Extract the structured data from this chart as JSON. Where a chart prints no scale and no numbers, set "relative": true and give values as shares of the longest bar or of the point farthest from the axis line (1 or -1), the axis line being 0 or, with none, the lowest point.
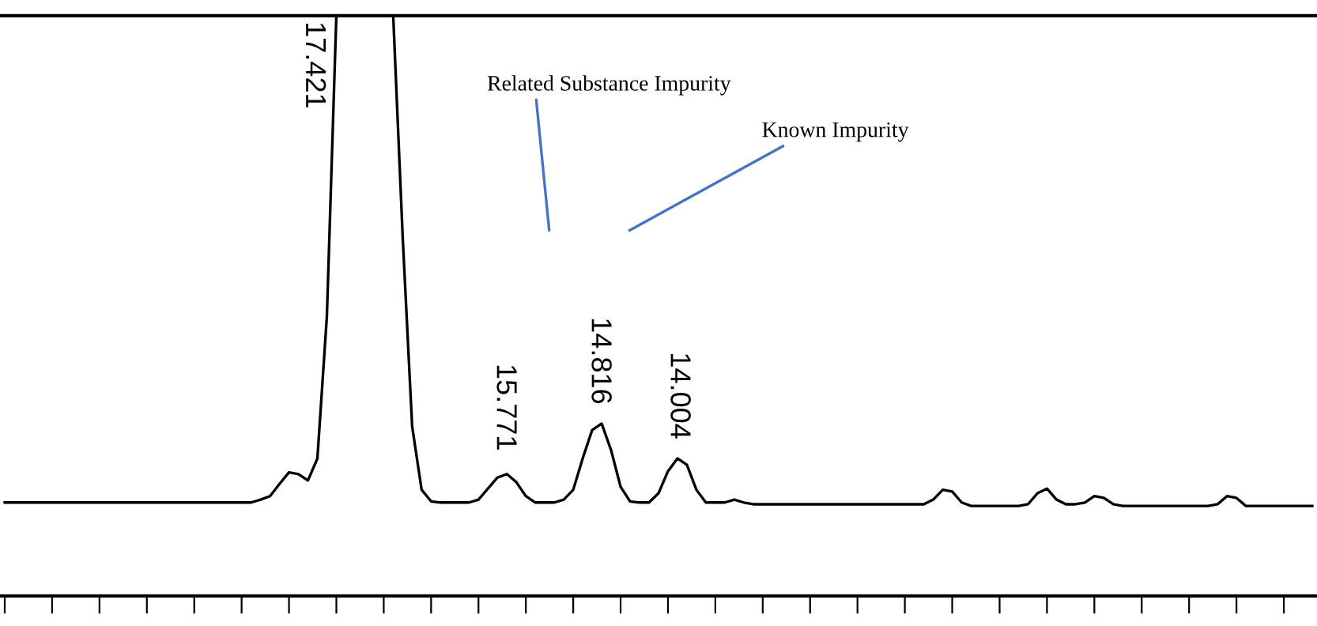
{
  "chart_data": {
    "type": "line",
    "relative": true,
    "tick_labels": false,
    "grid": false,
    "marker": "none",
    "line_style": "solid",
    "categories": [
      null,
      null,
      null,
      null,
      null,
      null,
      null,
      null,
      null,
      null,
      null,
      null,
      null,
      null,
      null,
      null,
      null,
      null,
      null,
      null,
      null,
      null,
      null,
      null,
      null,
      null,
      null,
      null,
      null,
      null,
      null,
      null,
      null,
      null,
      null,
      null,
      null,
      null,
      null,
      null,
      null,
      null,
      null,
      null,
      null,
      null,
      null,
      null,
      null,
      null,
      null,
      null,
      null,
      null,
      null,
      null,
      null,
      null,
      null,
      null,
      null,
      null,
      null,
      null,
      null,
      null,
      null,
      null,
      null,
      null,
      null,
      null,
      null,
      null,
      null,
      null,
      null,
      null,
      null,
      null,
      null,
      null,
      null,
      null,
      null,
      null,
      null,
      null,
      null,
      null,
      null,
      null,
      null,
      null,
      null,
      null,
      null,
      null,
      null,
      null,
      null,
      null,
      null,
      null,
      null,
      null,
      null,
      null,
      null,
      null,
      null,
      null,
      null,
      null,
      null,
      null,
      null,
      null,
      null,
      null,
      null,
      null,
      null,
      null,
      null,
      null,
      null,
      null,
      null,
      null,
      null,
      null,
      null,
      null,
      null,
      null,
      null,
      null,
      null
    ],
    "series": [
      {
        "color": "#000000",
        "values": [
          0.161,
          0.161,
          0.161,
          0.161,
          0.161,
          0.161,
          0.161,
          0.161,
          0.161,
          0.161,
          0.161,
          0.161,
          0.161,
          0.161,
          0.161,
          0.161,
          0.161,
          0.161,
          0.161,
          0.161,
          0.161,
          0.161,
          0.161,
          0.161,
          0.161,
          0.161,
          0.161,
          0.166,
          0.172,
          0.193,
          0.213,
          0.21,
          0.199,
          0.237,
          0.482,
          1.0,
          1.0,
          1.0,
          1.0,
          1.0,
          1.0,
          1.0,
          0.619,
          0.292,
          0.183,
          0.163,
          0.161,
          0.161,
          0.161,
          0.161,
          0.166,
          0.185,
          0.204,
          0.21,
          0.196,
          0.172,
          0.161,
          0.161,
          0.161,
          0.166,
          0.183,
          0.237,
          0.286,
          0.297,
          0.251,
          0.188,
          0.163,
          0.161,
          0.161,
          0.177,
          0.215,
          0.237,
          0.226,
          0.183,
          0.161,
          0.161,
          0.161,
          0.166,
          0.161,
          0.158,
          0.158,
          0.158,
          0.158,
          0.158,
          0.158,
          0.158,
          0.158,
          0.158,
          0.158,
          0.158,
          0.158,
          0.158,
          0.158,
          0.158,
          0.158,
          0.158,
          0.158,
          0.158,
          0.166,
          0.183,
          0.18,
          0.161,
          0.155,
          0.155,
          0.155,
          0.155,
          0.155,
          0.155,
          0.158,
          0.177,
          0.185,
          0.166,
          0.158,
          0.158,
          0.161,
          0.172,
          0.169,
          0.158,
          0.155,
          0.155,
          0.155,
          0.155,
          0.155,
          0.155,
          0.155,
          0.155,
          0.155,
          0.155,
          0.158,
          0.172,
          0.169,
          0.155,
          0.155,
          0.155,
          0.155,
          0.155,
          0.155,
          0.155,
          0.155
        ]
      }
    ],
    "annotations": [
      "17.421",
      "15.771",
      "14.816",
      "14.004",
      "Related Substance Impurity",
      "Known Impurity"
    ]
  }
}
